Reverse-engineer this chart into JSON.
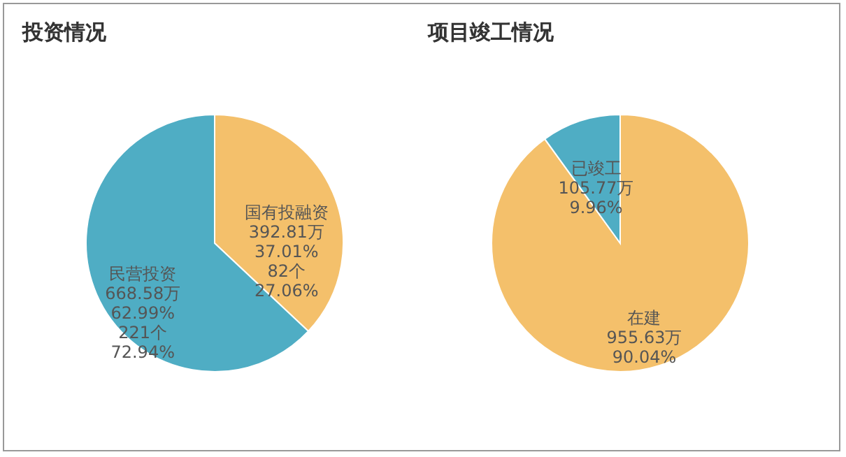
{
  "chart_data": [
    {
      "type": "pie",
      "title": "投资情况",
      "categories": [
        "国有投融资",
        "民营投资"
      ],
      "values": [
        392.81,
        668.58
      ],
      "value_labels": [
        "392.81万\n37.01%\n82个\n27.06%",
        "668.58万\n62.99%\n221个\n72.94%"
      ],
      "colors": [
        "#f4c06b",
        "#4fadc4"
      ]
    },
    {
      "type": "pie",
      "title": "项目竣工情况",
      "categories": [
        "在建",
        "已竣工"
      ],
      "values": [
        955.63,
        105.77
      ],
      "value_labels": [
        "955.63万\n90.04%",
        "105.77万\n9.96%"
      ],
      "colors": [
        "#f4c06b",
        "#4fadc4"
      ]
    }
  ]
}
